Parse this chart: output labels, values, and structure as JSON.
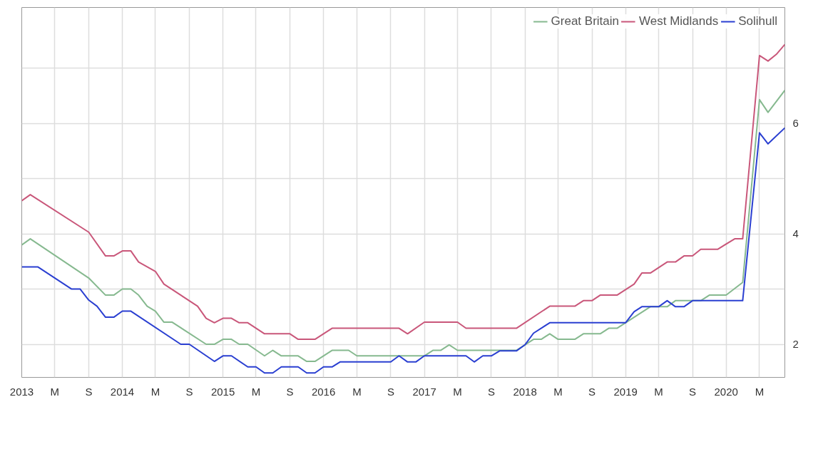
{
  "chart_data": {
    "type": "line",
    "series": [
      {
        "name": "Great Britain",
        "color": "#86b98f",
        "x": [
          "2013-01",
          "2013-02",
          "2013-09",
          "2013-11",
          "2013-12",
          "2014-01",
          "2014-02",
          "2014-03",
          "2014-04",
          "2014-05",
          "2014-06",
          "2014-07",
          "2014-11",
          "2014-12",
          "2015-01",
          "2015-02",
          "2015-03",
          "2015-04",
          "2015-06",
          "2015-07",
          "2015-08",
          "2015-10",
          "2015-11",
          "2015-12",
          "2016-02",
          "2016-04",
          "2016-05",
          "2017-01",
          "2017-02",
          "2017-03",
          "2017-04",
          "2017-05",
          "2017-10",
          "2017-12",
          "2018-01",
          "2018-02",
          "2018-03",
          "2018-04",
          "2018-05",
          "2018-07",
          "2018-08",
          "2018-10",
          "2018-11",
          "2018-12",
          "2019-01",
          "2019-04",
          "2019-06",
          "2019-07",
          "2019-10",
          "2019-11",
          "2020-01",
          "2020-03",
          "2020-05",
          "2020-06",
          "2020-08"
        ],
        "values": [
          3.8,
          3.91,
          3.2,
          2.89,
          2.89,
          3.0,
          3.0,
          2.89,
          2.69,
          2.6,
          2.4,
          2.4,
          2.0,
          2.0,
          2.09,
          2.09,
          2.0,
          2.0,
          1.79,
          1.89,
          1.79,
          1.79,
          1.69,
          1.69,
          1.89,
          1.89,
          1.79,
          1.79,
          1.89,
          1.89,
          1.99,
          1.89,
          1.89,
          1.89,
          1.99,
          2.09,
          2.09,
          2.19,
          2.09,
          2.09,
          2.19,
          2.19,
          2.29,
          2.29,
          2.39,
          2.68,
          2.68,
          2.79,
          2.79,
          2.89,
          2.89,
          3.12,
          6.43,
          6.2,
          6.6
        ]
      },
      {
        "name": "West Midlands",
        "color": "#c9577a",
        "x": [
          "2013-01",
          "2013-02",
          "2013-09",
          "2013-11",
          "2013-12",
          "2014-01",
          "2014-02",
          "2014-03",
          "2014-05",
          "2014-06",
          "2014-10",
          "2014-11",
          "2014-12",
          "2015-01",
          "2015-02",
          "2015-03",
          "2015-04",
          "2015-06",
          "2015-09",
          "2015-10",
          "2015-12",
          "2016-02",
          "2016-10",
          "2016-11",
          "2017-01",
          "2017-05",
          "2017-06",
          "2017-12",
          "2018-04",
          "2018-07",
          "2018-08",
          "2018-09",
          "2018-10",
          "2018-12",
          "2019-01",
          "2019-02",
          "2019-03",
          "2019-04",
          "2019-06",
          "2019-07",
          "2019-08",
          "2019-09",
          "2019-10",
          "2019-12",
          "2020-02",
          "2020-03",
          "2020-05",
          "2020-06",
          "2020-07",
          "2020-08"
        ],
        "values": [
          4.6,
          4.71,
          4.03,
          3.6,
          3.6,
          3.69,
          3.69,
          3.49,
          3.32,
          3.09,
          2.69,
          2.47,
          2.39,
          2.47,
          2.47,
          2.39,
          2.39,
          2.19,
          2.19,
          2.09,
          2.09,
          2.29,
          2.29,
          2.19,
          2.4,
          2.4,
          2.29,
          2.29,
          2.69,
          2.69,
          2.79,
          2.79,
          2.89,
          2.89,
          2.99,
          3.09,
          3.29,
          3.29,
          3.49,
          3.49,
          3.6,
          3.6,
          3.72,
          3.72,
          3.91,
          3.91,
          7.23,
          7.13,
          7.25,
          7.43
        ]
      },
      {
        "name": "Solihull",
        "color": "#2a3fd1",
        "x": [
          "2013-01",
          "2013-03",
          "2013-07",
          "2013-08",
          "2013-09",
          "2013-10",
          "2013-11",
          "2013-12",
          "2014-01",
          "2014-02",
          "2014-08",
          "2014-09",
          "2014-12",
          "2015-01",
          "2015-02",
          "2015-04",
          "2015-05",
          "2015-06",
          "2015-07",
          "2015-08",
          "2015-10",
          "2015-11",
          "2015-12",
          "2016-01",
          "2016-02",
          "2016-03",
          "2016-09",
          "2016-10",
          "2016-11",
          "2016-12",
          "2017-01",
          "2017-06",
          "2017-07",
          "2017-08",
          "2017-09",
          "2017-10",
          "2017-12",
          "2018-01",
          "2018-02",
          "2018-04",
          "2019-01",
          "2019-02",
          "2019-03",
          "2019-05",
          "2019-06",
          "2019-07",
          "2019-08",
          "2019-09",
          "2020-03",
          "2020-05",
          "2020-06",
          "2020-08"
        ],
        "values": [
          3.4,
          3.4,
          3.0,
          3.0,
          2.8,
          2.69,
          2.49,
          2.49,
          2.6,
          2.6,
          2.0,
          2.0,
          1.69,
          1.79,
          1.79,
          1.59,
          1.59,
          1.48,
          1.48,
          1.59,
          1.59,
          1.48,
          1.48,
          1.59,
          1.59,
          1.68,
          1.68,
          1.79,
          1.68,
          1.68,
          1.79,
          1.79,
          1.68,
          1.79,
          1.79,
          1.88,
          1.88,
          1.99,
          2.2,
          2.39,
          2.39,
          2.59,
          2.68,
          2.68,
          2.79,
          2.68,
          2.68,
          2.79,
          2.79,
          5.83,
          5.63,
          5.92
        ]
      }
    ],
    "xlim": [
      "2013-01",
      "2020-08"
    ],
    "xticks": [
      {
        "value": "2013-01",
        "label": "2013"
      },
      {
        "value": "2013-05",
        "label": "M"
      },
      {
        "value": "2013-09",
        "label": "S"
      },
      {
        "value": "2014-01",
        "label": "2014"
      },
      {
        "value": "2014-05",
        "label": "M"
      },
      {
        "value": "2014-09",
        "label": "S"
      },
      {
        "value": "2015-01",
        "label": "2015"
      },
      {
        "value": "2015-05",
        "label": "M"
      },
      {
        "value": "2015-09",
        "label": "S"
      },
      {
        "value": "2016-01",
        "label": "2016"
      },
      {
        "value": "2016-05",
        "label": "M"
      },
      {
        "value": "2016-09",
        "label": "S"
      },
      {
        "value": "2017-01",
        "label": "2017"
      },
      {
        "value": "2017-05",
        "label": "M"
      },
      {
        "value": "2017-09",
        "label": "S"
      },
      {
        "value": "2018-01",
        "label": "2018"
      },
      {
        "value": "2018-05",
        "label": "M"
      },
      {
        "value": "2018-09",
        "label": "S"
      },
      {
        "value": "2019-01",
        "label": "2019"
      },
      {
        "value": "2019-05",
        "label": "M"
      },
      {
        "value": "2019-09",
        "label": "S"
      },
      {
        "value": "2020-01",
        "label": "2020"
      },
      {
        "value": "2020-05",
        "label": "M"
      }
    ],
    "ylim": [
      1.4,
      8.1
    ],
    "yticks": [
      2,
      {
        "value": 3,
        "label": null
      },
      4,
      {
        "value": 5,
        "label": null
      },
      6,
      {
        "value": 7,
        "label": null
      }
    ],
    "grid": true,
    "legend": "top right",
    "line_style": "solid"
  }
}
